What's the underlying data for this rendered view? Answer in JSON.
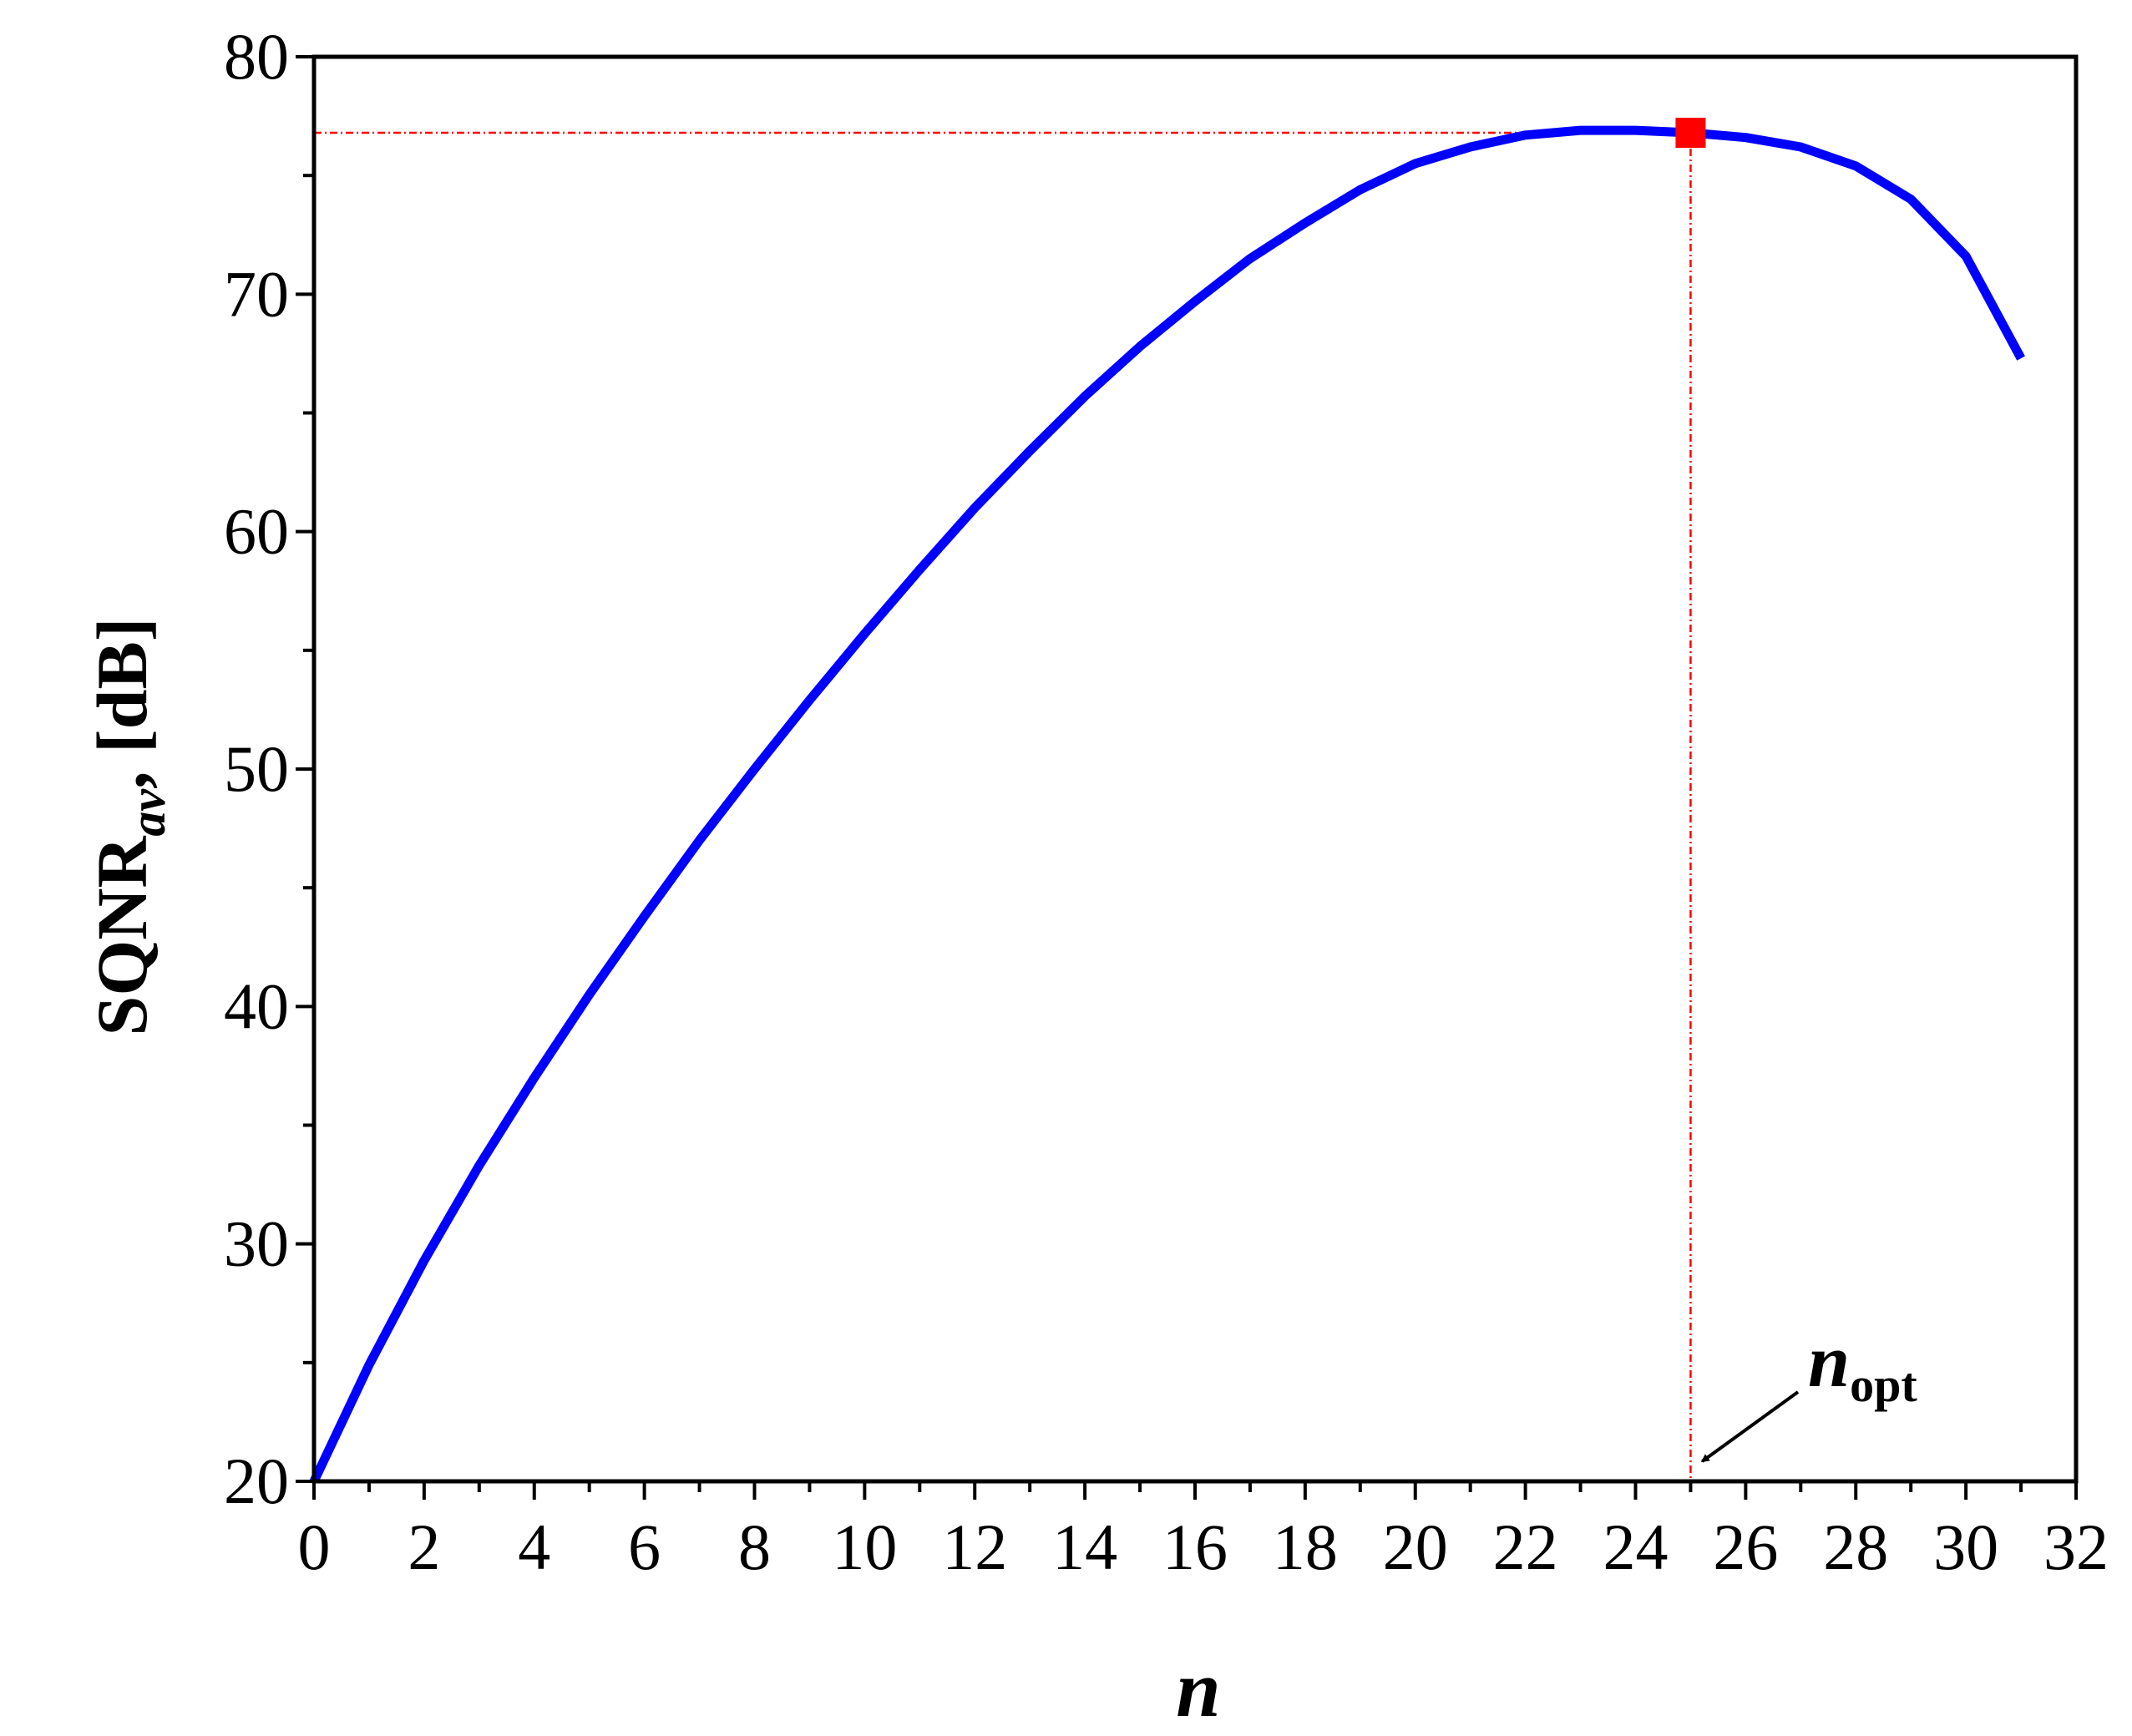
{
  "chart_data": {
    "type": "line",
    "xlabel": "n",
    "ylabel": {
      "main": "SQNR",
      "subscript": "av",
      "unit": "[dB]"
    },
    "xlim": [
      0,
      32
    ],
    "ylim": [
      20,
      80
    ],
    "x_ticks": [
      0,
      2,
      4,
      6,
      8,
      10,
      12,
      14,
      16,
      18,
      20,
      22,
      24,
      26,
      28,
      30,
      32
    ],
    "y_ticks": [
      20,
      30,
      40,
      50,
      60,
      70,
      80
    ],
    "grid": false,
    "series": [
      {
        "color": "#0000ff",
        "x": [
          0,
          1,
          2,
          3,
          4,
          5,
          6,
          7,
          8,
          9,
          10,
          11,
          12,
          13,
          14,
          15,
          16,
          17,
          18,
          19,
          20,
          21,
          22,
          23,
          24,
          25,
          26,
          27,
          28,
          29,
          30,
          31
        ],
        "y": [
          20.0,
          24.9,
          29.3,
          33.3,
          37.0,
          40.5,
          43.8,
          47.0,
          50.0,
          52.9,
          55.7,
          58.4,
          61.0,
          63.4,
          65.7,
          67.8,
          69.7,
          71.5,
          73.0,
          74.4,
          75.5,
          76.2,
          76.7,
          76.9,
          76.9,
          76.8,
          76.6,
          76.2,
          75.4,
          74.0,
          71.6,
          67.3
        ]
      }
    ],
    "optimum": {
      "x": 25,
      "y": 76.8,
      "color": "#ff0000",
      "label_main": "n",
      "label_sub": "opt"
    }
  }
}
